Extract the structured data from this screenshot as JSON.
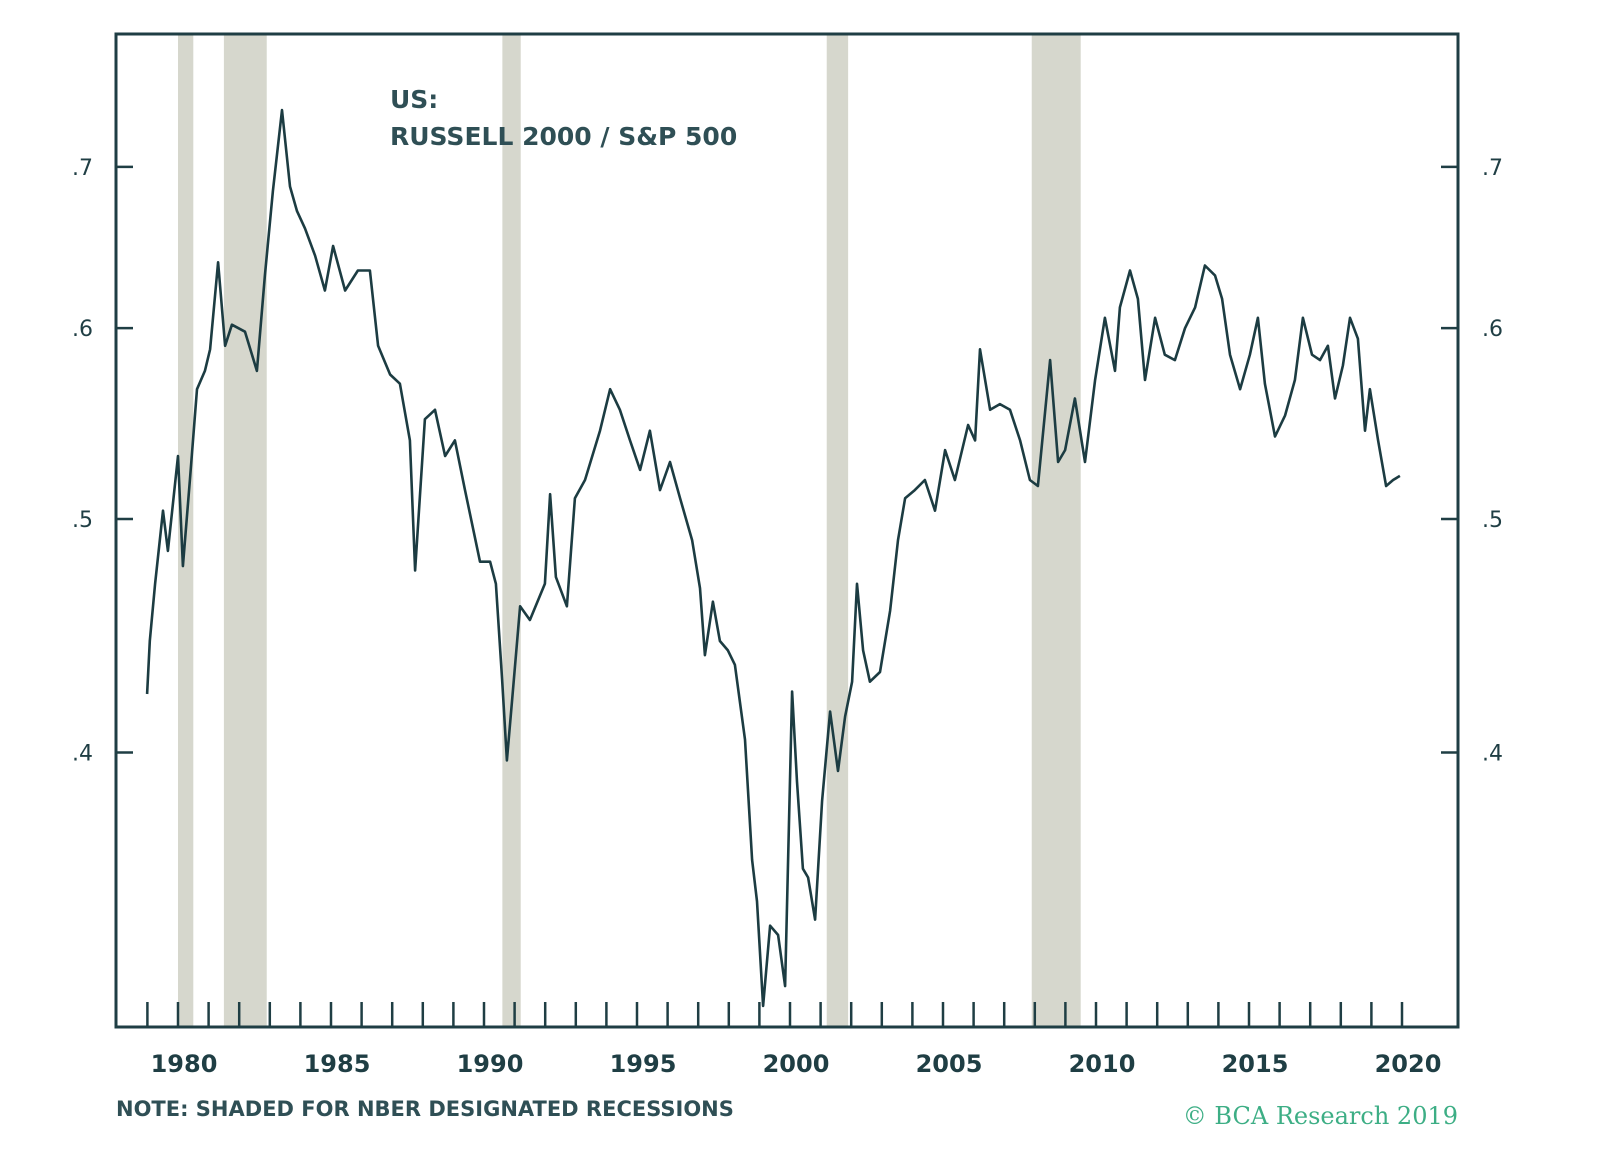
{
  "chart_data": {
    "type": "line",
    "title_line1": "US:",
    "title_line2": "RUSSELL 2000 / S&P 500",
    "xlabel": "",
    "ylabel": "",
    "y_scale": "log",
    "ylim": [
      0.3,
      0.79
    ],
    "xlim": [
      1977.9,
      2021.4
    ],
    "y_ticks": [
      {
        "value": 0.4,
        "label": ".4"
      },
      {
        "value": 0.5,
        "label": ".5"
      },
      {
        "value": 0.6,
        "label": ".6"
      },
      {
        "value": 0.7,
        "label": ".7"
      }
    ],
    "x_tick_labels": [
      {
        "value": 1980,
        "label": "1980"
      },
      {
        "value": 1985,
        "label": "1985"
      },
      {
        "value": 1990,
        "label": "1990"
      },
      {
        "value": 1995,
        "label": "1995"
      },
      {
        "value": 2000,
        "label": "2000"
      },
      {
        "value": 2005,
        "label": "2005"
      },
      {
        "value": 2010,
        "label": "2010"
      },
      {
        "value": 2015,
        "label": "2015"
      },
      {
        "value": 2020,
        "label": "2020"
      }
    ],
    "x_minor_ticks_every_year": [
      1979,
      2020
    ],
    "grid": false,
    "legend": "none",
    "recessions": [
      {
        "start": 1980.0,
        "end": 1980.5
      },
      {
        "start": 1981.5,
        "end": 1982.9
      },
      {
        "start": 1990.6,
        "end": 1991.2
      },
      {
        "start": 2001.2,
        "end": 2001.9
      },
      {
        "start": 2007.9,
        "end": 2009.5
      }
    ],
    "series": [
      {
        "name": "Russell 2000 / S&P 500",
        "color": "#1c3c42",
        "points": [
          [
            1978.99,
            0.423
          ],
          [
            1979.08,
            0.445
          ],
          [
            1979.25,
            0.47
          ],
          [
            1979.51,
            0.504
          ],
          [
            1979.67,
            0.485
          ],
          [
            1980.0,
            0.531
          ],
          [
            1980.16,
            0.478
          ],
          [
            1980.39,
            0.519
          ],
          [
            1980.62,
            0.566
          ],
          [
            1980.88,
            0.576
          ],
          [
            1981.05,
            0.588
          ],
          [
            1981.31,
            0.639
          ],
          [
            1981.54,
            0.59
          ],
          [
            1981.76,
            0.602
          ],
          [
            1982.19,
            0.598
          ],
          [
            1982.58,
            0.576
          ],
          [
            1982.84,
            0.631
          ],
          [
            1983.1,
            0.684
          ],
          [
            1983.4,
            0.739
          ],
          [
            1983.66,
            0.687
          ],
          [
            1983.89,
            0.671
          ],
          [
            1984.15,
            0.66
          ],
          [
            1984.48,
            0.643
          ],
          [
            1984.8,
            0.622
          ],
          [
            1985.07,
            0.649
          ],
          [
            1985.46,
            0.622
          ],
          [
            1985.88,
            0.634
          ],
          [
            1986.27,
            0.634
          ],
          [
            1986.54,
            0.59
          ],
          [
            1986.93,
            0.574
          ],
          [
            1987.25,
            0.569
          ],
          [
            1987.58,
            0.539
          ],
          [
            1987.75,
            0.476
          ],
          [
            1988.07,
            0.55
          ],
          [
            1988.4,
            0.555
          ],
          [
            1988.73,
            0.531
          ],
          [
            1989.05,
            0.539
          ],
          [
            1989.38,
            0.514
          ],
          [
            1989.87,
            0.48
          ],
          [
            1990.2,
            0.48
          ],
          [
            1990.39,
            0.47
          ],
          [
            1990.59,
            0.429
          ],
          [
            1990.75,
            0.397
          ],
          [
            1990.92,
            0.421
          ],
          [
            1991.18,
            0.46
          ],
          [
            1991.5,
            0.454
          ],
          [
            1991.99,
            0.47
          ],
          [
            1992.16,
            0.512
          ],
          [
            1992.35,
            0.473
          ],
          [
            1992.71,
            0.46
          ],
          [
            1992.97,
            0.51
          ],
          [
            1993.3,
            0.519
          ],
          [
            1993.79,
            0.544
          ],
          [
            1994.12,
            0.566
          ],
          [
            1994.44,
            0.555
          ],
          [
            1994.77,
            0.539
          ],
          [
            1995.1,
            0.524
          ],
          [
            1995.42,
            0.544
          ],
          [
            1995.75,
            0.514
          ],
          [
            1996.08,
            0.528
          ],
          [
            1996.41,
            0.51
          ],
          [
            1996.8,
            0.49
          ],
          [
            1997.06,
            0.468
          ],
          [
            1997.22,
            0.439
          ],
          [
            1997.48,
            0.462
          ],
          [
            1997.71,
            0.445
          ],
          [
            1997.97,
            0.441
          ],
          [
            1998.2,
            0.435
          ],
          [
            1998.53,
            0.405
          ],
          [
            1998.76,
            0.361
          ],
          [
            1998.92,
            0.347
          ],
          [
            1999.12,
            0.314
          ],
          [
            1999.35,
            0.339
          ],
          [
            1999.61,
            0.336
          ],
          [
            1999.84,
            0.32
          ],
          [
            2000.07,
            0.424
          ],
          [
            2000.23,
            0.389
          ],
          [
            2000.42,
            0.358
          ],
          [
            2000.59,
            0.355
          ],
          [
            2000.82,
            0.341
          ],
          [
            2001.05,
            0.382
          ],
          [
            2001.31,
            0.416
          ],
          [
            2001.57,
            0.393
          ],
          [
            2001.8,
            0.414
          ],
          [
            2002.03,
            0.428
          ],
          [
            2002.19,
            0.47
          ],
          [
            2002.39,
            0.441
          ],
          [
            2002.61,
            0.428
          ],
          [
            2002.94,
            0.432
          ],
          [
            2003.27,
            0.458
          ],
          [
            2003.53,
            0.49
          ],
          [
            2003.76,
            0.51
          ],
          [
            2004.08,
            0.514
          ],
          [
            2004.41,
            0.519
          ],
          [
            2004.74,
            0.504
          ],
          [
            2005.07,
            0.534
          ],
          [
            2005.39,
            0.519
          ],
          [
            2005.82,
            0.547
          ],
          [
            2006.05,
            0.539
          ],
          [
            2006.21,
            0.588
          ],
          [
            2006.54,
            0.555
          ],
          [
            2006.86,
            0.558
          ],
          [
            2007.19,
            0.555
          ],
          [
            2007.52,
            0.539
          ],
          [
            2007.84,
            0.519
          ],
          [
            2008.1,
            0.516
          ],
          [
            2008.5,
            0.582
          ],
          [
            2008.76,
            0.528
          ],
          [
            2008.99,
            0.534
          ],
          [
            2009.31,
            0.561
          ],
          [
            2009.64,
            0.528
          ],
          [
            2009.97,
            0.571
          ],
          [
            2010.29,
            0.606
          ],
          [
            2010.62,
            0.576
          ],
          [
            2010.78,
            0.612
          ],
          [
            2011.11,
            0.634
          ],
          [
            2011.37,
            0.617
          ],
          [
            2011.6,
            0.571
          ],
          [
            2011.93,
            0.606
          ],
          [
            2012.25,
            0.585
          ],
          [
            2012.58,
            0.582
          ],
          [
            2012.91,
            0.6
          ],
          [
            2013.24,
            0.612
          ],
          [
            2013.56,
            0.637
          ],
          [
            2013.89,
            0.631
          ],
          [
            2014.12,
            0.617
          ],
          [
            2014.38,
            0.585
          ],
          [
            2014.71,
            0.566
          ],
          [
            2015.03,
            0.585
          ],
          [
            2015.29,
            0.606
          ],
          [
            2015.52,
            0.569
          ],
          [
            2015.85,
            0.541
          ],
          [
            2016.18,
            0.552
          ],
          [
            2016.5,
            0.571
          ],
          [
            2016.76,
            0.606
          ],
          [
            2017.06,
            0.585
          ],
          [
            2017.32,
            0.582
          ],
          [
            2017.58,
            0.59
          ],
          [
            2017.81,
            0.561
          ],
          [
            2018.07,
            0.579
          ],
          [
            2018.3,
            0.606
          ],
          [
            2018.56,
            0.594
          ],
          [
            2018.79,
            0.544
          ],
          [
            2018.95,
            0.566
          ],
          [
            2019.22,
            0.539
          ],
          [
            2019.48,
            0.516
          ],
          [
            2019.71,
            0.519
          ],
          [
            2019.93,
            0.521
          ]
        ]
      }
    ],
    "note": "NOTE: SHADED FOR NBER DESIGNATED RECESSIONS",
    "credit": "© BCA Research 2019"
  },
  "colors": {
    "line": "#1c3c42",
    "axis": "#1f3e44",
    "recession": "#d6d7cd",
    "credit": "#3dae85"
  }
}
